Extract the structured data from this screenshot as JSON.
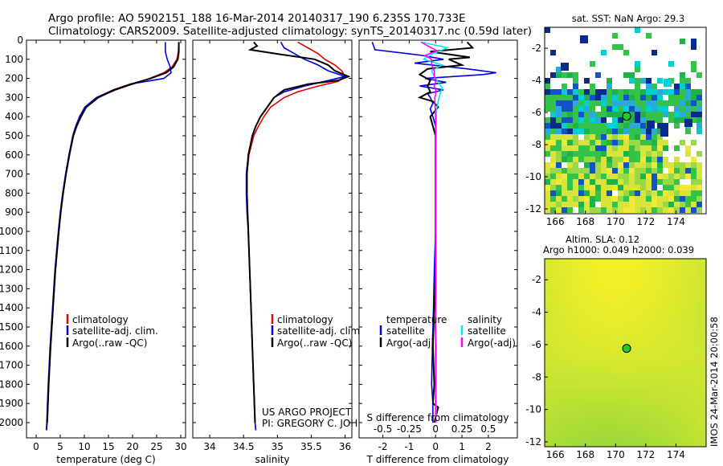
{
  "header": {
    "line1": "Argo profile: AO 5902151_188 16-Mar-2014 20140317_190 6.235S 170.733E",
    "line2": "Climatology: CARS2009. Satellite-adjusted climatology: synTS_20140317.nc (0.59d later)"
  },
  "colors": {
    "climatology": "#e00000",
    "satellite": "#0000e0",
    "argo": "#000000",
    "cyan": "#00e8f0",
    "magenta": "#ff00ff"
  },
  "chart_data": [
    {
      "type": "line",
      "panel": "temperature",
      "xlabel": "temperature (deg C)",
      "ylabel": "",
      "xlim": [
        -2,
        31
      ],
      "ylim": [
        2080,
        0
      ],
      "xticks": [
        "0",
        "5",
        "10",
        "15",
        "20",
        "25",
        "30"
      ],
      "yticks": [
        "0",
        "100",
        "200",
        "300",
        "400",
        "500",
        "600",
        "700",
        "800",
        "900",
        "1000",
        "1100",
        "1200",
        "1300",
        "1400",
        "1500",
        "1600",
        "1700",
        "1800",
        "1900",
        "2000"
      ],
      "legend": [
        "climatology",
        "satellite-adj. clim.",
        "Argo(..raw -QC)"
      ],
      "series": [
        {
          "name": "climatology",
          "color_key": "climatology",
          "p": [
            10,
            60,
            100,
            140,
            170,
            200,
            230,
            260,
            300,
            350,
            400,
            450,
            500,
            600,
            700,
            800,
            900,
            1000,
            1200,
            1400,
            1600,
            1800,
            2000,
            2040
          ],
          "values": [
            29.6,
            29.5,
            29.2,
            28.2,
            26.5,
            23.5,
            20,
            16.5,
            12.8,
            10.3,
            9.2,
            8.3,
            7.7,
            6.9,
            6.2,
            5.6,
            5.1,
            4.7,
            4,
            3.5,
            3,
            2.6,
            2.3,
            2.2
          ]
        },
        {
          "name": "satellite-adj. clim.",
          "color_key": "satellite",
          "p": [
            10,
            60,
            100,
            140,
            170,
            200,
            230,
            260,
            300,
            350,
            400,
            450,
            500,
            600,
            700,
            800,
            900,
            1000,
            1200,
            1400,
            1600,
            1800,
            2000,
            2040
          ],
          "values": [
            26.8,
            26.8,
            27.2,
            27.8,
            28,
            26.5,
            19.5,
            16,
            12.5,
            10.1,
            9.0,
            8.2,
            7.6,
            6.8,
            6.1,
            5.5,
            5.0,
            4.6,
            3.9,
            3.4,
            2.9,
            2.5,
            2.2,
            2.1
          ]
        },
        {
          "name": "Argo(..raw -QC)",
          "color_key": "argo",
          "p": [
            10,
            60,
            100,
            140,
            170,
            200,
            230,
            260,
            300,
            350,
            400,
            450,
            500,
            600,
            700,
            800,
            900,
            1000,
            1200,
            1400,
            1600,
            1800,
            2000
          ],
          "values": [
            29.6,
            29.6,
            29.4,
            28.5,
            27,
            23.8,
            19.7,
            16.2,
            12.9,
            10.4,
            9.3,
            8.4,
            7.7,
            6.9,
            6.2,
            5.6,
            5.1,
            4.7,
            4.0,
            3.5,
            3.0,
            2.6,
            2.3
          ]
        }
      ]
    },
    {
      "type": "line",
      "panel": "salinity",
      "xlabel": "salinity",
      "xlim": [
        33.75,
        36.1
      ],
      "ylim": [
        2080,
        0
      ],
      "xticks": [
        "34",
        "34.5",
        "35",
        "35.5",
        "36"
      ],
      "legend": [
        "climatology",
        "satellite-adj. clim.",
        "Argo(..raw -QC)"
      ],
      "series": [
        {
          "name": "climatology",
          "color_key": "climatology",
          "p": [
            10,
            40,
            70,
            100,
            130,
            160,
            190,
            215,
            240,
            270,
            300,
            350,
            400,
            450,
            500,
            600,
            700,
            800,
            900,
            1000,
            1200,
            1400,
            1600,
            1800,
            2000,
            2040
          ],
          "values": [
            35.3,
            35.45,
            35.6,
            35.7,
            35.85,
            35.95,
            36.0,
            35.9,
            35.6,
            35.3,
            35.1,
            34.9,
            34.8,
            34.72,
            34.65,
            34.58,
            34.55,
            34.55,
            34.56,
            34.57,
            34.59,
            34.61,
            34.63,
            34.65,
            34.67,
            34.68
          ]
        },
        {
          "name": "satellite-adj. clim.",
          "color_key": "satellite",
          "p": [
            10,
            40,
            70,
            100,
            130,
            160,
            190,
            215,
            240,
            270,
            300,
            350,
            400,
            450,
            500,
            600,
            700,
            800,
            900,
            1000,
            1200,
            1400,
            1600,
            1800,
            2000,
            2040
          ],
          "values": [
            35.05,
            35.1,
            35.25,
            35.4,
            35.6,
            35.75,
            36.0,
            35.7,
            35.4,
            35.1,
            34.95,
            34.85,
            34.75,
            34.68,
            34.63,
            34.57,
            34.54,
            34.54,
            34.55,
            34.57,
            34.59,
            34.61,
            34.63,
            34.65,
            34.67,
            34.68
          ]
        },
        {
          "name": "Argo(..raw -QC)",
          "color_key": "argo",
          "p": [
            10,
            30,
            50,
            75,
            100,
            130,
            160,
            190,
            210,
            230,
            260,
            300,
            350,
            400,
            450,
            500,
            600,
            700,
            800,
            900,
            1000,
            1200,
            1400,
            1600,
            1800,
            2000
          ],
          "values": [
            34.65,
            34.7,
            34.6,
            35.05,
            35.55,
            35.75,
            35.85,
            36.05,
            35.9,
            35.45,
            35.1,
            34.95,
            34.85,
            34.75,
            34.68,
            34.63,
            34.57,
            34.55,
            34.55,
            34.56,
            34.57,
            34.59,
            34.61,
            34.63,
            34.65,
            34.67
          ]
        }
      ]
    },
    {
      "type": "line",
      "panel": "difference",
      "xlabel": "T difference from climatology",
      "xlabel_top": "S difference from climatology",
      "xlim": [
        -2.9,
        3.1
      ],
      "ylim": [
        2080,
        0
      ],
      "xticks": [
        "-2",
        "-1",
        "0",
        "1",
        "2"
      ],
      "xticks_s": [
        "-0.5",
        "-0.25",
        "0",
        "0.25",
        "0.5"
      ],
      "legend": {
        "temperature": "temperature",
        "salinity": "salinity",
        "t_sat": "satellite",
        "t_argo": "Argo(-adj)",
        "s_sat": "satellite",
        "s_argo": "Argo(-adj)"
      },
      "series": [
        {
          "name": "T satellite",
          "color_key": "satellite",
          "p": [
            10,
            50,
            80,
            100,
            120,
            150,
            170,
            180,
            200,
            220,
            240,
            260,
            280,
            300,
            330,
            360,
            400,
            450,
            500,
            600,
            800,
            1000,
            1200,
            1400,
            1600,
            1800,
            1900,
            2000
          ],
          "values": [
            -2.4,
            -2.3,
            -0.5,
            0.3,
            -0.8,
            1.2,
            2.3,
            1.8,
            -0.4,
            0.4,
            -0.6,
            0.3,
            -0.3,
            -0.2,
            -0.1,
            -0.2,
            -0.1,
            0,
            0,
            0,
            0,
            0,
            -0.05,
            -0.08,
            -0.12,
            -0.15,
            -0.1,
            -0.1
          ]
        },
        {
          "name": "T Argo(-adj)",
          "color_key": "argo",
          "p": [
            10,
            40,
            60,
            90,
            100,
            130,
            150,
            180,
            210,
            240,
            270,
            300,
            320,
            350,
            400,
            450,
            500,
            600,
            800,
            1000,
            1200,
            1400,
            1600,
            1800,
            1900,
            1920,
            2000
          ],
          "values": [
            1.2,
            1.4,
            -0.2,
            1.3,
            0.5,
            1.0,
            -0.3,
            -0.6,
            -0.2,
            -0.3,
            -0.2,
            -0.6,
            -0.1,
            0.1,
            -0.2,
            -0.1,
            0,
            0,
            0,
            0,
            0,
            -0.05,
            -0.1,
            -0.05,
            -0.1,
            0.1,
            -0.05
          ]
        },
        {
          "name": "S satellite",
          "color_key": "cyan",
          "p": [
            10,
            40,
            70,
            100,
            130,
            160,
            190,
            220,
            250,
            290,
            350,
            400,
            500,
            700,
            900,
            1100,
            1300,
            1500,
            1600,
            1800,
            2000
          ],
          "values": [
            -0.55,
            0.45,
            -0.1,
            -0.45,
            0.25,
            -0.15,
            -0.05,
            0.1,
            0.25,
            0.15,
            0.05,
            0.02,
            0.02,
            0.01,
            0.01,
            0.02,
            0.02,
            -0.02,
            0.03,
            0.02,
            0.02
          ]
        },
        {
          "name": "S Argo(-adj)",
          "color_key": "magenta",
          "p": [
            10,
            30,
            55,
            80,
            100,
            130,
            160,
            190,
            210,
            240,
            270,
            300,
            350,
            400,
            500,
            700,
            900,
            1100,
            1300,
            1500,
            1600,
            1800,
            2000
          ],
          "values": [
            -0.55,
            -0.3,
            0.05,
            -0.4,
            -0.15,
            -0.15,
            -0.05,
            -0.05,
            0.02,
            -0.05,
            0.02,
            -0.03,
            -0.02,
            0.0,
            0.0,
            0.0,
            0.0,
            0.0,
            0.0,
            0.0,
            0.0,
            0.0,
            0.0
          ]
        }
      ]
    },
    {
      "type": "heatmap",
      "panel": "sst-map",
      "title": "sat. SST: NaN Argo: 29.3",
      "xlim": [
        165.3,
        176
      ],
      "ylim": [
        -12.3,
        -0.7
      ],
      "xticks": [
        "166",
        "168",
        "170",
        "172",
        "174"
      ],
      "yticks": [
        "-2",
        "-4",
        "-6",
        "-8",
        "-10",
        "-12"
      ],
      "marker": {
        "lon": 170.733,
        "lat": -6.235
      }
    },
    {
      "type": "heatmap",
      "panel": "sla-map",
      "title": "Altim. SLA: 0.12",
      "subtitle": "Argo h1000: 0.049 h2000: 0.039",
      "xlim": [
        165.3,
        176
      ],
      "ylim": [
        -12.3,
        -0.7
      ],
      "xticks": [
        "166",
        "168",
        "170",
        "172",
        "174"
      ],
      "yticks": [
        "-2",
        "-4",
        "-6",
        "-8",
        "-10",
        "-12"
      ],
      "marker": {
        "lon": 170.733,
        "lat": -6.235
      }
    }
  ],
  "credit": {
    "line1": "US ARGO PROJECT",
    "line2": "PI: GREGORY C. JOHNSON"
  },
  "stamp": "IMOS 24-Mar-2014 20:00:58"
}
